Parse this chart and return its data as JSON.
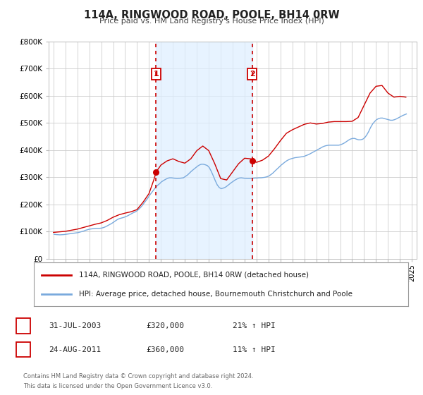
{
  "title": "114A, RINGWOOD ROAD, POOLE, BH14 0RW",
  "subtitle": "Price paid vs. HM Land Registry's House Price Index (HPI)",
  "hpi_color": "#7aaadd",
  "price_color": "#cc0000",
  "background_color": "#ffffff",
  "plot_bg_color": "#ffffff",
  "grid_color": "#cccccc",
  "ylim": [
    0,
    800000
  ],
  "yticks": [
    0,
    100000,
    200000,
    300000,
    400000,
    500000,
    600000,
    700000,
    800000
  ],
  "ytick_labels": [
    "£0",
    "£100K",
    "£200K",
    "£300K",
    "£400K",
    "£500K",
    "£600K",
    "£700K",
    "£800K"
  ],
  "xlim_start": 1994.6,
  "xlim_end": 2025.4,
  "xticks": [
    1995,
    1996,
    1997,
    1998,
    1999,
    2000,
    2001,
    2002,
    2003,
    2004,
    2005,
    2006,
    2007,
    2008,
    2009,
    2010,
    2011,
    2012,
    2013,
    2014,
    2015,
    2016,
    2017,
    2018,
    2019,
    2020,
    2021,
    2022,
    2023,
    2024,
    2025
  ],
  "transaction1": {
    "date": "31-JUL-2003",
    "year": 2003.58,
    "price": 320000,
    "label": "1",
    "hpi_pct": "21%"
  },
  "transaction2": {
    "date": "24-AUG-2011",
    "year": 2011.64,
    "price": 360000,
    "label": "2",
    "hpi_pct": "11%"
  },
  "legend_line1": "114A, RINGWOOD ROAD, POOLE, BH14 0RW (detached house)",
  "legend_line2": "HPI: Average price, detached house, Bournemouth Christchurch and Poole",
  "footnote1": "Contains HM Land Registry data © Crown copyright and database right 2024.",
  "footnote2": "This data is licensed under the Open Government Licence v3.0.",
  "span_color": "#ddeeff",
  "hpi_data_years": [
    1995.04,
    1995.21,
    1995.38,
    1995.54,
    1995.71,
    1995.88,
    1996.04,
    1996.21,
    1996.38,
    1996.54,
    1996.71,
    1996.88,
    1997.04,
    1997.21,
    1997.38,
    1997.54,
    1997.71,
    1997.88,
    1998.04,
    1998.21,
    1998.38,
    1998.54,
    1998.71,
    1998.88,
    1999.04,
    1999.21,
    1999.38,
    1999.54,
    1999.71,
    1999.88,
    2000.04,
    2000.21,
    2000.38,
    2000.54,
    2000.71,
    2000.88,
    2001.04,
    2001.21,
    2001.38,
    2001.54,
    2001.71,
    2001.88,
    2002.04,
    2002.21,
    2002.38,
    2002.54,
    2002.71,
    2002.88,
    2003.04,
    2003.21,
    2003.38,
    2003.54,
    2003.71,
    2003.88,
    2004.04,
    2004.21,
    2004.38,
    2004.54,
    2004.71,
    2004.88,
    2005.04,
    2005.21,
    2005.38,
    2005.54,
    2005.71,
    2005.88,
    2006.04,
    2006.21,
    2006.38,
    2006.54,
    2006.71,
    2006.88,
    2007.04,
    2007.21,
    2007.38,
    2007.54,
    2007.71,
    2007.88,
    2008.04,
    2008.21,
    2008.38,
    2008.54,
    2008.71,
    2008.88,
    2009.04,
    2009.21,
    2009.38,
    2009.54,
    2009.71,
    2009.88,
    2010.04,
    2010.21,
    2010.38,
    2010.54,
    2010.71,
    2010.88,
    2011.04,
    2011.21,
    2011.38,
    2011.54,
    2011.71,
    2011.88,
    2012.04,
    2012.21,
    2012.38,
    2012.54,
    2012.71,
    2012.88,
    2013.04,
    2013.21,
    2013.38,
    2013.54,
    2013.71,
    2013.88,
    2014.04,
    2014.21,
    2014.38,
    2014.54,
    2014.71,
    2014.88,
    2015.04,
    2015.21,
    2015.38,
    2015.54,
    2015.71,
    2015.88,
    2016.04,
    2016.21,
    2016.38,
    2016.54,
    2016.71,
    2016.88,
    2017.04,
    2017.21,
    2017.38,
    2017.54,
    2017.71,
    2017.88,
    2018.04,
    2018.21,
    2018.38,
    2018.54,
    2018.71,
    2018.88,
    2019.04,
    2019.21,
    2019.38,
    2019.54,
    2019.71,
    2019.88,
    2020.04,
    2020.21,
    2020.38,
    2020.54,
    2020.71,
    2020.88,
    2021.04,
    2021.21,
    2021.38,
    2021.54,
    2021.71,
    2021.88,
    2022.04,
    2022.21,
    2022.38,
    2022.54,
    2022.71,
    2022.88,
    2023.04,
    2023.21,
    2023.38,
    2023.54,
    2023.71,
    2023.88,
    2024.04,
    2024.21,
    2024.38,
    2024.54
  ],
  "hpi_data_values": [
    90000,
    89000,
    88500,
    88000,
    88500,
    89000,
    90000,
    91000,
    92000,
    93000,
    94000,
    95000,
    96000,
    98000,
    100000,
    102000,
    105000,
    107000,
    109000,
    110000,
    111000,
    112000,
    112000,
    112000,
    113000,
    115000,
    118000,
    122000,
    126000,
    130000,
    135000,
    140000,
    145000,
    148000,
    150000,
    152000,
    155000,
    158000,
    162000,
    166000,
    170000,
    173000,
    178000,
    185000,
    193000,
    202000,
    212000,
    222000,
    233000,
    243000,
    253000,
    262000,
    270000,
    276000,
    283000,
    288000,
    292000,
    296000,
    298000,
    298000,
    297000,
    296000,
    295000,
    296000,
    297000,
    298000,
    303000,
    308000,
    315000,
    322000,
    328000,
    334000,
    340000,
    345000,
    348000,
    348000,
    346000,
    343000,
    336000,
    322000,
    305000,
    288000,
    272000,
    262000,
    258000,
    260000,
    263000,
    268000,
    274000,
    280000,
    285000,
    290000,
    294000,
    297000,
    298000,
    297000,
    296000,
    295000,
    295000,
    295000,
    296000,
    297000,
    297000,
    298000,
    298000,
    299000,
    300000,
    302000,
    305000,
    310000,
    316000,
    323000,
    330000,
    337000,
    344000,
    350000,
    356000,
    361000,
    365000,
    368000,
    370000,
    372000,
    373000,
    374000,
    375000,
    376000,
    378000,
    381000,
    384000,
    388000,
    392000,
    396000,
    400000,
    404000,
    408000,
    412000,
    415000,
    417000,
    418000,
    418000,
    418000,
    418000,
    418000,
    418000,
    420000,
    423000,
    427000,
    432000,
    437000,
    441000,
    443000,
    443000,
    440000,
    438000,
    438000,
    440000,
    445000,
    455000,
    468000,
    483000,
    496000,
    505000,
    512000,
    516000,
    518000,
    518000,
    516000,
    514000,
    512000,
    510000,
    510000,
    512000,
    515000,
    519000,
    523000,
    527000,
    530000,
    533000
  ],
  "price_data_years": [
    1995.0,
    1995.5,
    1996.0,
    1996.5,
    1997.0,
    1997.5,
    1998.0,
    1998.5,
    1999.0,
    1999.5,
    2000.0,
    2000.5,
    2001.0,
    2001.5,
    2002.0,
    2002.5,
    2003.0,
    2003.4,
    2003.6,
    2004.0,
    2004.5,
    2005.0,
    2005.5,
    2006.0,
    2006.5,
    2007.0,
    2007.5,
    2008.0,
    2008.5,
    2009.0,
    2009.5,
    2010.0,
    2010.5,
    2011.0,
    2011.5,
    2011.7,
    2012.0,
    2012.5,
    2013.0,
    2013.5,
    2014.0,
    2014.5,
    2015.0,
    2015.5,
    2016.0,
    2016.5,
    2017.0,
    2017.5,
    2018.0,
    2018.5,
    2019.0,
    2019.5,
    2020.0,
    2020.5,
    2021.0,
    2021.5,
    2022.0,
    2022.5,
    2023.0,
    2023.5,
    2024.0,
    2024.5
  ],
  "price_data_values": [
    97000,
    99000,
    101000,
    105000,
    109000,
    115000,
    121000,
    127000,
    132000,
    141000,
    153000,
    162000,
    168000,
    173000,
    181000,
    208000,
    240000,
    290000,
    320000,
    345000,
    360000,
    368000,
    358000,
    352000,
    368000,
    398000,
    415000,
    398000,
    350000,
    295000,
    290000,
    320000,
    350000,
    370000,
    368000,
    360000,
    355000,
    363000,
    378000,
    405000,
    435000,
    462000,
    475000,
    485000,
    495000,
    500000,
    496000,
    498000,
    503000,
    505000,
    505000,
    505000,
    506000,
    520000,
    565000,
    610000,
    635000,
    638000,
    610000,
    595000,
    598000,
    595000
  ]
}
